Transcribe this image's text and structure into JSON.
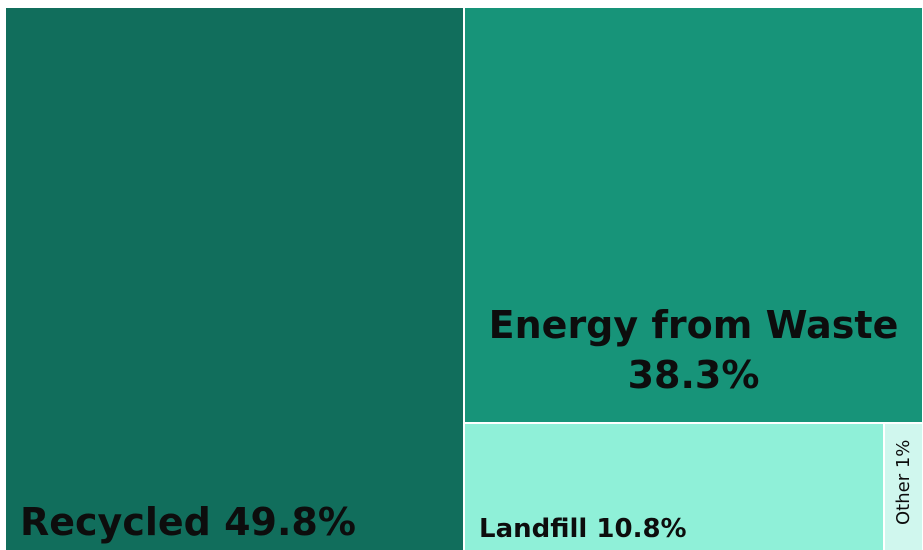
{
  "chart_data": {
    "type": "treemap",
    "title": "",
    "items": [
      {
        "name": "Recycled",
        "value": 49.8,
        "label": "Recycled 49.8%",
        "color": "#116e5c"
      },
      {
        "name": "Energy from Waste",
        "value": 38.3,
        "label_line1": "Energy from Waste",
        "label_line2": "38.3%",
        "color": "#179479"
      },
      {
        "name": "Landfill",
        "value": 10.8,
        "label": "Landfill 10.8%",
        "color": "#8ff0d8"
      },
      {
        "name": "Other",
        "value": 1,
        "label": "Other 1%",
        "color": "#d0f7ee"
      }
    ]
  }
}
